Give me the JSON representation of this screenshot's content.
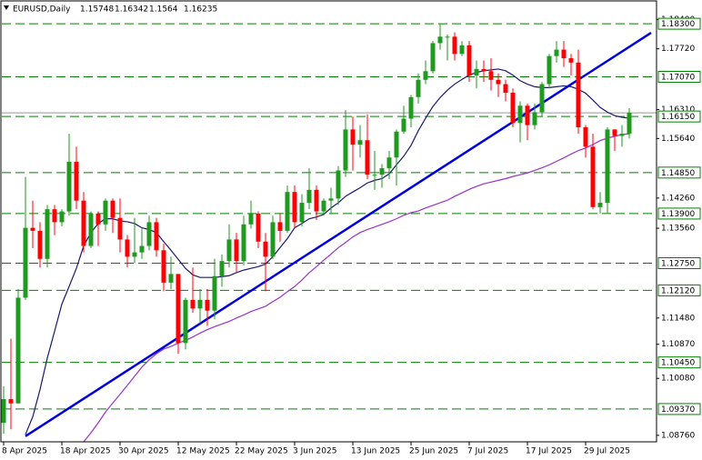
{
  "chart_data": {
    "type": "candlestick",
    "title": "EURUSD,Daily",
    "categories": [
      "8 Apr 2025",
      null,
      null,
      null,
      null,
      null,
      null,
      null,
      "18 Apr 2025",
      null,
      null,
      null,
      null,
      null,
      null,
      null,
      "30 Apr 2025",
      null,
      null,
      null,
      null,
      null,
      null,
      null,
      "12 May 2025",
      null,
      null,
      null,
      null,
      null,
      null,
      null,
      "22 May 2025",
      null,
      null,
      null,
      null,
      null,
      null,
      null,
      "3 Jun 2025",
      null,
      null,
      null,
      null,
      null,
      null,
      null,
      "13 Jun 2025",
      null,
      null,
      null,
      null,
      null,
      null,
      null,
      "25 Jun 2025",
      null,
      null,
      null,
      null,
      null,
      null,
      null,
      "7 Jul 2025",
      null,
      null,
      null,
      null,
      null,
      null,
      null,
      "17 Jul 2025",
      null,
      null,
      null,
      null,
      null,
      null,
      null,
      "29 Jul 2025",
      null,
      null,
      null,
      null,
      null,
      null
    ],
    "open": [
      1.0905,
      1.096,
      1.095,
      1.1195,
      1.1357,
      1.135,
      1.1285,
      1.14,
      1.137,
      1.1395,
      1.151,
      1.142,
      1.1315,
      1.139,
      1.1365,
      1.142,
      1.138,
      1.133,
      1.129,
      1.13,
      1.1315,
      1.137,
      1.1305,
      1.123,
      1.125,
      1.109,
      1.119,
      1.117,
      1.119,
      1.1165,
      1.1245,
      1.128,
      1.133,
      1.128,
      1.1365,
      1.139,
      1.1325,
      1.129,
      1.137,
      1.135,
      1.144,
      1.137,
      1.1415,
      1.1445,
      1.1395,
      1.142,
      1.1425,
      1.149,
      1.1585,
      1.155,
      1.156,
      1.148,
      1.148,
      1.1495,
      1.152,
      1.158,
      1.161,
      1.166,
      1.17,
      1.172,
      1.1785,
      1.18,
      1.18,
      1.176,
      1.178,
      1.171,
      1.1725,
      1.172,
      1.17,
      1.169,
      1.167,
      1.16,
      1.164,
      1.1595,
      1.1625,
      1.169,
      1.1755,
      1.177,
      1.175,
      1.174,
      1.159,
      1.1545,
      1.1405,
      1.1415,
      1.1585,
      1.157,
      1.15748
    ],
    "high": [
      1.099,
      1.11,
      1.1215,
      1.1475,
      1.142,
      1.137,
      1.141,
      1.141,
      1.14,
      1.1575,
      1.1545,
      1.144,
      1.1395,
      1.1395,
      1.1425,
      1.1425,
      1.1425,
      1.134,
      1.138,
      1.1355,
      1.1385,
      1.138,
      1.132,
      1.129,
      1.125,
      1.1195,
      1.1265,
      1.1215,
      1.1215,
      1.1285,
      1.1295,
      1.1365,
      1.1345,
      1.1385,
      1.142,
      1.1395,
      1.1345,
      1.1385,
      1.139,
      1.1455,
      1.1455,
      1.1435,
      1.1495,
      1.1455,
      1.1425,
      1.145,
      1.15,
      1.163,
      1.1615,
      1.1595,
      1.162,
      1.1535,
      1.1505,
      1.1535,
      1.1585,
      1.164,
      1.1665,
      1.1715,
      1.1745,
      1.179,
      1.183,
      1.1805,
      1.181,
      1.179,
      1.179,
      1.1745,
      1.1745,
      1.175,
      1.1715,
      1.17,
      1.168,
      1.165,
      1.1645,
      1.1645,
      1.1695,
      1.176,
      1.179,
      1.179,
      1.176,
      1.177,
      1.1595,
      1.1575,
      1.144,
      1.159,
      1.1585,
      1.1595,
      1.16342
    ],
    "low": [
      1.088,
      1.089,
      1.095,
      1.119,
      1.131,
      1.1265,
      1.1265,
      1.134,
      1.136,
      1.1385,
      1.14,
      1.13,
      1.131,
      1.1315,
      1.135,
      1.1345,
      1.13,
      1.1265,
      1.1275,
      1.1285,
      1.1305,
      1.129,
      1.121,
      1.1215,
      1.1065,
      1.1075,
      1.116,
      1.1135,
      1.113,
      1.1145,
      1.122,
      1.1265,
      1.1255,
      1.127,
      1.1355,
      1.131,
      1.121,
      1.1285,
      1.1325,
      1.1345,
      1.1355,
      1.136,
      1.14,
      1.1375,
      1.1385,
      1.139,
      1.141,
      1.1475,
      1.149,
      1.152,
      1.147,
      1.1445,
      1.145,
      1.147,
      1.1455,
      1.1575,
      1.159,
      1.1645,
      1.169,
      1.1715,
      1.177,
      1.1745,
      1.1745,
      1.1755,
      1.1695,
      1.168,
      1.1695,
      1.1675,
      1.166,
      1.165,
      1.159,
      1.1555,
      1.156,
      1.1585,
      1.1615,
      1.168,
      1.174,
      1.173,
      1.171,
      1.1575,
      1.152,
      1.14,
      1.139,
      1.139,
      1.1535,
      1.1545,
      1.1564
    ],
    "close": [
      1.096,
      1.095,
      1.1195,
      1.1357,
      1.135,
      1.1285,
      1.14,
      1.137,
      1.1395,
      1.151,
      1.142,
      1.1315,
      1.139,
      1.1365,
      1.142,
      1.138,
      1.133,
      1.129,
      1.13,
      1.1315,
      1.137,
      1.1305,
      1.123,
      1.125,
      1.109,
      1.119,
      1.117,
      1.119,
      1.1165,
      1.1245,
      1.128,
      1.133,
      1.128,
      1.1365,
      1.139,
      1.1325,
      1.129,
      1.137,
      1.135,
      1.144,
      1.137,
      1.1415,
      1.1445,
      1.1395,
      1.142,
      1.1425,
      1.149,
      1.1585,
      1.155,
      1.156,
      1.148,
      1.148,
      1.1495,
      1.152,
      1.158,
      1.161,
      1.166,
      1.17,
      1.172,
      1.1785,
      1.18,
      1.18,
      1.176,
      1.178,
      1.171,
      1.1725,
      1.172,
      1.17,
      1.169,
      1.167,
      1.16,
      1.164,
      1.1595,
      1.1625,
      1.169,
      1.1755,
      1.177,
      1.175,
      1.174,
      1.159,
      1.1545,
      1.1405,
      1.1415,
      1.1585,
      1.157,
      1.1575,
      1.16235
    ],
    "up_color": "#1e9a1e",
    "down_color": "#ff0000",
    "moving_averages": [
      {
        "color": "#191970",
        "values": [
          null,
          null,
          null,
          1.0878,
          1.0919,
          1.0982,
          1.1055,
          1.1117,
          1.118,
          1.1221,
          1.1263,
          1.1315,
          1.1346,
          1.1367,
          1.1378,
          1.1378,
          1.1373,
          1.1371,
          1.1367,
          1.1357,
          1.1353,
          1.1346,
          1.1325,
          1.1305,
          1.1284,
          1.1263,
          1.1248,
          1.1242,
          1.1242,
          1.1242,
          1.1244,
          1.1246,
          1.1253,
          1.1259,
          1.1263,
          1.1267,
          1.1273,
          1.129,
          1.1311,
          1.1332,
          1.1357,
          1.1367,
          1.1378,
          1.1382,
          1.1388,
          1.1403,
          1.1415,
          1.143,
          1.144,
          1.145,
          1.1461,
          1.1467,
          1.1471,
          1.1482,
          1.1503,
          1.1523,
          1.1548,
          1.1582,
          1.1611,
          1.1638,
          1.1659,
          1.1676,
          1.169,
          1.1701,
          1.1711,
          1.1717,
          1.1721,
          1.1723,
          1.1725,
          1.1721,
          1.1711,
          1.1698,
          1.169,
          1.1684,
          1.1682,
          1.1682,
          1.1684,
          1.1686,
          1.1684,
          1.1678,
          1.1669,
          1.1653,
          1.1636,
          1.1625,
          1.1617,
          1.1613,
          1.1611
        ]
      },
      {
        "color": "#9932cc",
        "values": [
          null,
          null,
          null,
          null,
          null,
          null,
          null,
          null,
          null,
          null,
          null,
          1.0861,
          1.0882,
          1.0905,
          1.093,
          1.0951,
          1.0971,
          1.0992,
          1.1013,
          1.1034,
          1.1051,
          1.1065,
          1.1076,
          1.1082,
          1.109,
          1.1096,
          1.1104,
          1.1113,
          1.1121,
          1.1128,
          1.1134,
          1.114,
          1.1148,
          1.1155,
          1.1163,
          1.1169,
          1.1175,
          1.1186,
          1.1196,
          1.1209,
          1.1221,
          1.1236,
          1.1253,
          1.1267,
          1.1282,
          1.1296,
          1.1311,
          1.1323,
          1.1336,
          1.1346,
          1.1353,
          1.1359,
          1.1365,
          1.1371,
          1.1378,
          1.1386,
          1.1392,
          1.1396,
          1.1403,
          1.1409,
          1.1415,
          1.1421,
          1.143,
          1.1438,
          1.1446,
          1.1453,
          1.1459,
          1.1463,
          1.1467,
          1.1471,
          1.1476,
          1.148,
          1.1484,
          1.149,
          1.1496,
          1.1503,
          1.1511,
          1.1519,
          1.1528,
          1.1536,
          1.1542,
          1.155,
          1.1559,
          1.1565,
          1.1569,
          1.1573,
          1.1575
        ]
      }
    ],
    "trendline": {
      "color": "#0000e0",
      "x": [
        3,
        89
      ],
      "values": [
        1.0874,
        1.1809
      ]
    },
    "levels_color": "#008000",
    "levels": [
      {
        "value": 1.183,
        "label": "1.18300"
      },
      {
        "value": 1.1707,
        "label": "1.17070"
      },
      {
        "value": 1.1615,
        "label": "1.16150"
      },
      {
        "value": 1.1485,
        "label": "1.14850"
      },
      {
        "value": 1.139,
        "label": "1.13900"
      },
      {
        "value": 1.1275,
        "label": "1.12750"
      },
      {
        "value": 1.1212,
        "label": "1.12120"
      },
      {
        "value": 1.1045,
        "label": "1.10450"
      },
      {
        "value": 1.0937,
        "label": "1.09370"
      }
    ],
    "ylim": [
      1.0861,
      1.1885
    ],
    "yticks": [
      {
        "value": 1.184,
        "label": "1.18400"
      },
      {
        "value": 1.1772,
        "label": "1.17720"
      },
      {
        "value": 1.1631,
        "label": "1.16310"
      },
      {
        "value": 1.1564,
        "label": "1.15640"
      },
      {
        "value": 1.1426,
        "label": "1.14260"
      },
      {
        "value": 1.1356,
        "label": "1.13560"
      },
      {
        "value": 1.1148,
        "label": "1.11480"
      },
      {
        "value": 1.1087,
        "label": "1.10870"
      },
      {
        "value": 1.1008,
        "label": "1.10080"
      },
      {
        "value": 1.0876,
        "label": "1.08760"
      }
    ]
  }
}
